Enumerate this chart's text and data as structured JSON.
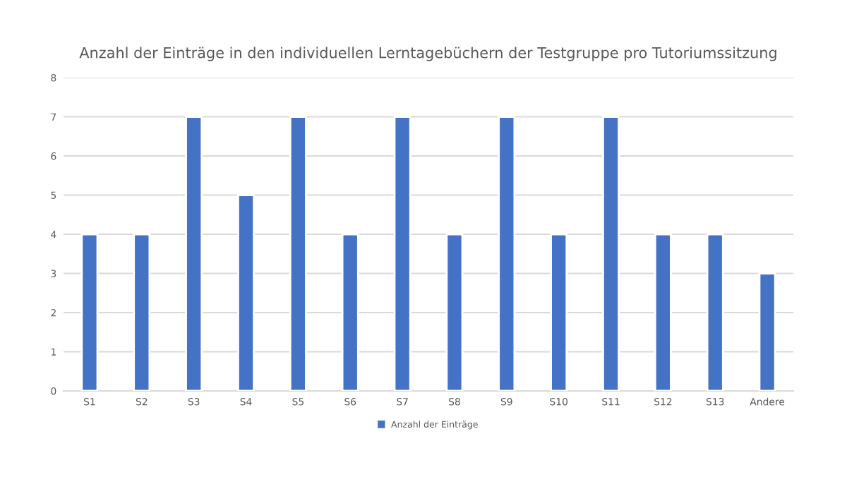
{
  "chart_data": {
    "type": "bar",
    "title": "Anzahl der Einträge in den individuellen Lerntagebüchern der Testgruppe pro Tutoriumssitzung",
    "categories": [
      "S1",
      "S2",
      "S3",
      "S4",
      "S5",
      "S6",
      "S7",
      "S8",
      "S9",
      "S10",
      "S11",
      "S12",
      "S13",
      "Andere"
    ],
    "series": [
      {
        "name": "Anzahl der Einträge",
        "color": "#4472c4",
        "values": [
          4,
          4,
          7,
          5,
          7,
          4,
          7,
          4,
          7,
          4,
          7,
          4,
          4,
          3
        ]
      }
    ],
    "ylim": [
      0,
      8
    ],
    "yticks": [
      0,
      1,
      2,
      3,
      4,
      5,
      6,
      7,
      8
    ],
    "grid": "y",
    "legend": "bottom"
  }
}
